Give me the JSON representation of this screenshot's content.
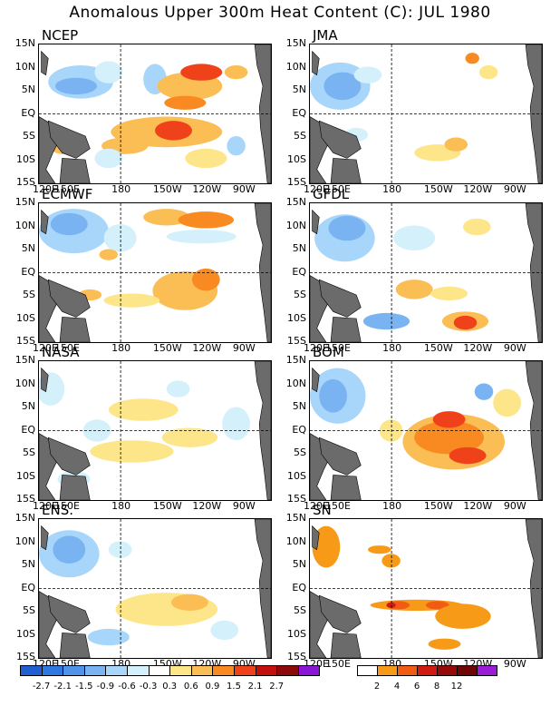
{
  "title": "Anomalous Upper 300m Heat Content (C): JUL 1980",
  "lat_labels": [
    "15N",
    "10N",
    "5N",
    "EQ",
    "5S",
    "10S",
    "15S"
  ],
  "lon_labels": [
    "120E",
    "150E",
    "180",
    "150W",
    "120W",
    "90W"
  ],
  "panels": [
    {
      "name": "NCEP"
    },
    {
      "name": "JMA"
    },
    {
      "name": "ECMWF"
    },
    {
      "name": "GFDL"
    },
    {
      "name": "NASA"
    },
    {
      "name": "BOM"
    },
    {
      "name": "ENS. Mean"
    },
    {
      "name": "SN Ratio"
    }
  ],
  "anomaly_colorbar": {
    "labels": [
      "-2.7",
      "-2.1",
      "-1.5",
      "-0.9",
      "-0.6",
      "-0.3",
      "0.3",
      "0.6",
      "0.9",
      "1.5",
      "2.1",
      "2.7"
    ],
    "colors": [
      "#1f5fd0",
      "#2f78e0",
      "#4f93ea",
      "#79b3f2",
      "#a8d6fa",
      "#d3f0fb",
      "#ffffff",
      "#fde68a",
      "#fbbe54",
      "#f98a22",
      "#f0421a",
      "#c40f0f",
      "#8c0a0a",
      "#8a17d6"
    ]
  },
  "ratio_colorbar": {
    "labels": [
      "2",
      "4",
      "6",
      "8",
      "12"
    ],
    "colors": [
      "#ffffff",
      "#f79a18",
      "#f15b14",
      "#d01c10",
      "#960a0a",
      "#6e0606",
      "#9b1cd6"
    ]
  },
  "colors": {
    "land": "#6b6b6b",
    "coast": "#000000"
  }
}
